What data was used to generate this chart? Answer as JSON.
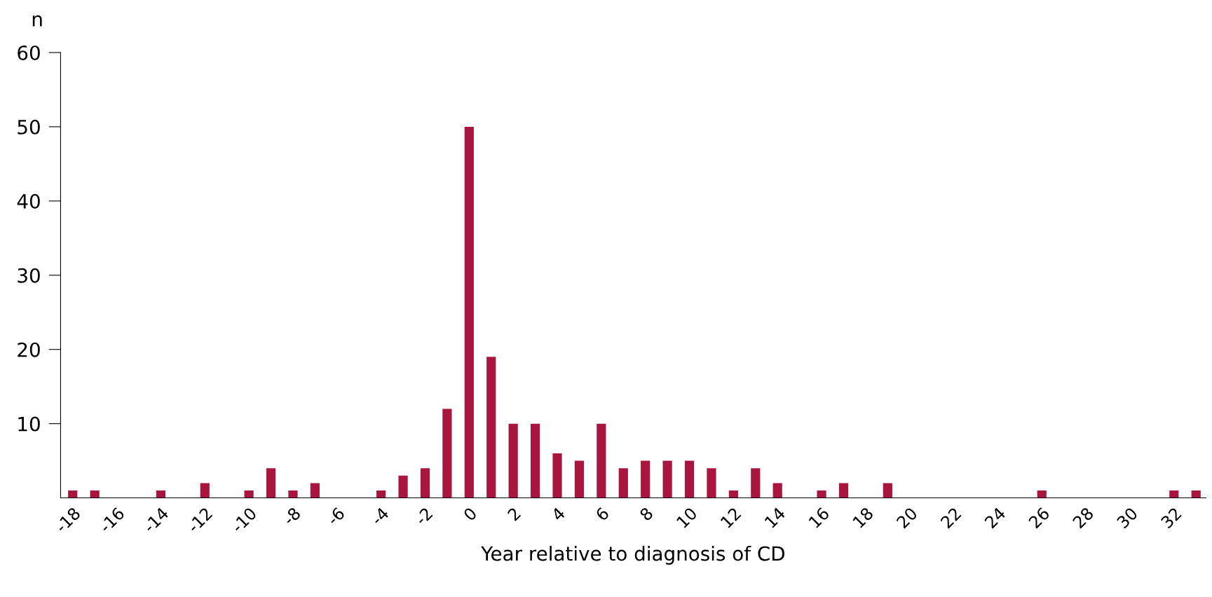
{
  "chart_data": {
    "type": "bar",
    "ylabel": "n",
    "xlabel": "Year relative to diagnosis of CD",
    "categories": [
      "-18",
      null,
      "-16",
      null,
      "-14",
      null,
      "-12",
      null,
      "-10",
      null,
      "-8",
      null,
      "-6",
      null,
      "-4",
      null,
      "-2",
      null,
      "0",
      null,
      "2",
      null,
      "4",
      null,
      "6",
      null,
      "8",
      null,
      "10",
      null,
      "12",
      null,
      "14",
      null,
      "16",
      null,
      "18",
      null,
      "20",
      null,
      "22",
      null,
      "24",
      null,
      "26",
      null,
      "28",
      null,
      "30",
      null,
      "32",
      null
    ],
    "values": [
      1,
      1,
      0,
      0,
      1,
      0,
      2,
      0,
      1,
      4,
      1,
      2,
      0,
      0,
      1,
      3,
      4,
      12,
      50,
      19,
      10,
      10,
      6,
      5,
      10,
      4,
      5,
      5,
      5,
      4,
      1,
      4,
      2,
      0,
      1,
      2,
      0,
      2,
      0,
      0,
      0,
      0,
      0,
      0,
      1,
      0,
      0,
      0,
      0,
      0,
      1,
      1
    ],
    "color": "#a8163f",
    "ylim": [
      0,
      60
    ],
    "yticks": [
      10,
      20,
      30,
      40,
      50,
      60
    ],
    "grid": false
  }
}
